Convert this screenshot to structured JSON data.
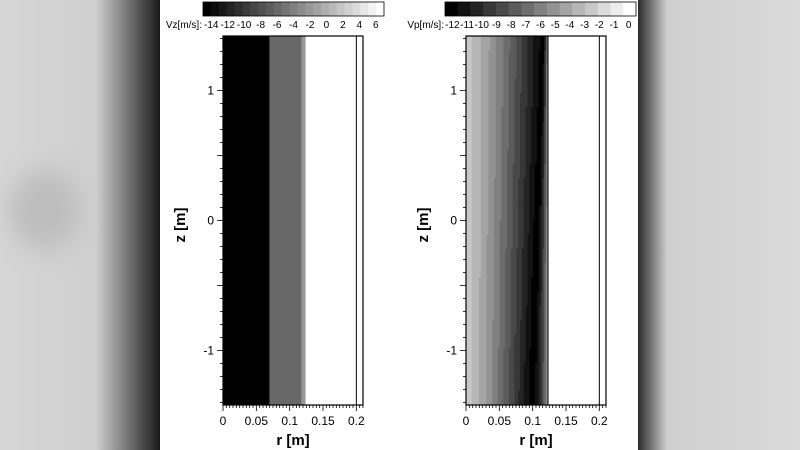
{
  "colors": {
    "page": "#ffffff",
    "frame": "#000000",
    "side_bands": "#d0d0d0"
  },
  "chart_data": [
    {
      "type": "heatmap",
      "legend_label": "Vz[m/s]:",
      "legend_ticks": [
        "-14",
        "-12",
        "-10",
        "-8",
        "-6",
        "-4",
        "-2",
        "0",
        "2",
        "4",
        "6"
      ],
      "legend_levels": [
        -15,
        -14,
        -13,
        -12,
        -11,
        -10,
        -9,
        -8,
        -7,
        -6,
        -5,
        -4,
        -3,
        -2,
        -1,
        0,
        1,
        2,
        3,
        4,
        5,
        6,
        7
      ],
      "legend_range": [
        -15,
        7
      ],
      "xlabel": "r [m]",
      "ylabel": "z [m]",
      "xlim": [
        0,
        0.21
      ],
      "ylim": [
        -1.42,
        1.42
      ],
      "xticks": [
        "0",
        "0.05",
        "0.1",
        "0.15",
        "0.2"
      ],
      "yticks": [
        "1",
        "0",
        "-1"
      ],
      "bands": [
        {
          "r_from": 0.0,
          "r_to": 0.07,
          "value": -15
        },
        {
          "r_from": 0.07,
          "r_to": 0.118,
          "value": -6
        },
        {
          "r_from": 0.118,
          "r_to": 0.124,
          "value": -2
        },
        {
          "r_from": 0.124,
          "r_to": 0.21,
          "value": 7
        }
      ],
      "wall_r": 0.2
    },
    {
      "type": "heatmap",
      "legend_label": "Vp[m/s]:",
      "legend_ticks": [
        "-12",
        "-11",
        "-10",
        "-9",
        "-8",
        "-7",
        "-6",
        "-5",
        "-4",
        "-3",
        "-2",
        "-1",
        "0"
      ],
      "legend_levels": [
        -13,
        -12,
        -11,
        -10,
        -9,
        -8,
        -7,
        -6,
        -5,
        -4,
        -3,
        -2,
        -1,
        0,
        1
      ],
      "legend_range": [
        -13,
        1
      ],
      "xlabel": "r [m]",
      "ylabel": "z [m]",
      "xlim": [
        0,
        0.21
      ],
      "ylim": [
        -1.42,
        1.42
      ],
      "xticks": [
        "0",
        "0.05",
        "0.1",
        "0.15",
        "0.2"
      ],
      "yticks": [
        "1",
        "0",
        "-1"
      ],
      "field": {
        "peak_r_top": 0.115,
        "peak_r_bottom": 0.097,
        "peak_value": -13,
        "axis_value": -2,
        "wall_value": -4,
        "duct_r": 0.123
      },
      "wall_r": 0.2
    }
  ]
}
